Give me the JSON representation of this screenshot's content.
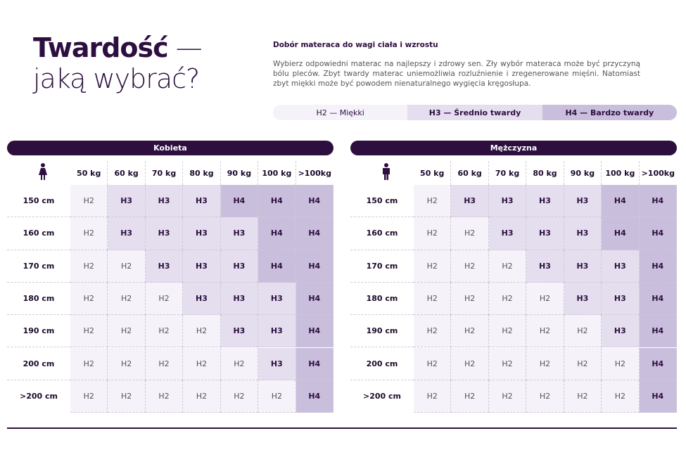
{
  "header": {
    "title_bold": "Twardość",
    "title_dash": "—",
    "title_line2": "jaką wybrać?"
  },
  "intro": {
    "heading": "Dobór materaca do wagi ciała i wzrostu",
    "text": "Wybierz odpowiedni materac na najlepszy i zdrowy sen. Zły wybór materaca może być przyczyną bólu pleców. Zbyt twardy materac uniemożliwia rozluźnienie i zregenerowane mięśni. Natomiast zbyt miękki może być powodem nienaturalnego wygięcia kręgosłupa."
  },
  "legend": [
    "H2 — Miękki",
    "H3 — Średnio twardy",
    "H4 — Bardzo twardy"
  ],
  "tables": [
    {
      "title": "Kobieta",
      "columns": [
        "50 kg",
        "60 kg",
        "70 kg",
        "80 kg",
        "90 kg",
        "100 kg",
        ">100kg"
      ],
      "rows": [
        {
          "label": "150 cm",
          "cells": [
            "H2",
            "H3",
            "H3",
            "H3",
            "H4",
            "H4",
            "H4"
          ]
        },
        {
          "label": "160 cm",
          "cells": [
            "H2",
            "H3",
            "H3",
            "H3",
            "H3",
            "H4",
            "H4"
          ]
        },
        {
          "label": "170 cm",
          "cells": [
            "H2",
            "H2",
            "H3",
            "H3",
            "H3",
            "H4",
            "H4"
          ]
        },
        {
          "label": "180 cm",
          "cells": [
            "H2",
            "H2",
            "H2",
            "H3",
            "H3",
            "H3",
            "H4"
          ]
        },
        {
          "label": "190 cm",
          "cells": [
            "H2",
            "H2",
            "H2",
            "H2",
            "H3",
            "H3",
            "H4"
          ]
        },
        {
          "label": "200 cm",
          "cells": [
            "H2",
            "H2",
            "H2",
            "H2",
            "H2",
            "H3",
            "H4"
          ]
        },
        {
          "label": ">200 cm",
          "cells": [
            "H2",
            "H2",
            "H2",
            "H2",
            "H2",
            "H2",
            "H4"
          ]
        }
      ]
    },
    {
      "title": "Mężczyzna",
      "columns": [
        "50 kg",
        "60 kg",
        "70 kg",
        "80 kg",
        "90 kg",
        "100 kg",
        ">100kg"
      ],
      "rows": [
        {
          "label": "150 cm",
          "cells": [
            "H2",
            "H3",
            "H3",
            "H3",
            "H3",
            "H4",
            "H4"
          ]
        },
        {
          "label": "160 cm",
          "cells": [
            "H2",
            "H2",
            "H3",
            "H3",
            "H3",
            "H4",
            "H4"
          ]
        },
        {
          "label": "170 cm",
          "cells": [
            "H2",
            "H2",
            "H2",
            "H3",
            "H3",
            "H3",
            "H4"
          ]
        },
        {
          "label": "180 cm",
          "cells": [
            "H2",
            "H2",
            "H2",
            "H2",
            "H3",
            "H3",
            "H4"
          ]
        },
        {
          "label": "190 cm",
          "cells": [
            "H2",
            "H2",
            "H2",
            "H2",
            "H2",
            "H3",
            "H4"
          ]
        },
        {
          "label": "200 cm",
          "cells": [
            "H2",
            "H2",
            "H2",
            "H2",
            "H2",
            "H2",
            "H4"
          ]
        },
        {
          "label": ">200 cm",
          "cells": [
            "H2",
            "H2",
            "H2",
            "H2",
            "H2",
            "H2",
            "H4"
          ]
        }
      ]
    }
  ]
}
